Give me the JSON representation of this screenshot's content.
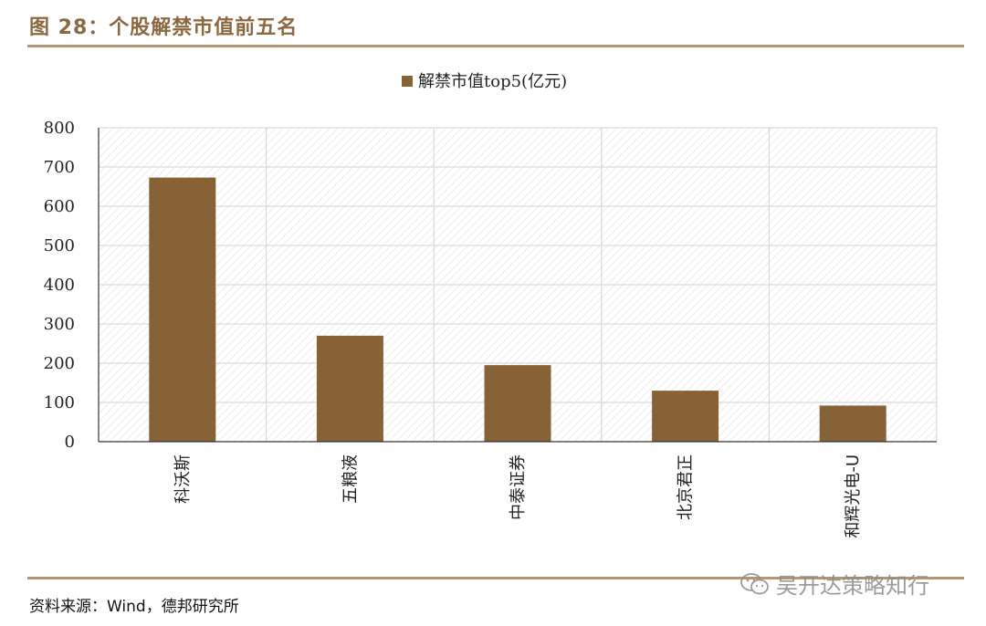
{
  "header": {
    "title": "图 28：个股解禁市值前五名"
  },
  "footer": {
    "source": "资料来源：Wind，德邦研究所",
    "watermark": "吴开达策略知行"
  },
  "colors": {
    "bar": "#876236",
    "accent": "#8b6840",
    "rule": "#b59574",
    "grid": "#d9d9d9"
  },
  "chart_data": {
    "type": "bar",
    "categories": [
      "科沃斯",
      "五粮液",
      "中泰证券",
      "北京君正",
      "和辉光电-U"
    ],
    "series": [
      {
        "name": "解禁市值top5(亿元)",
        "values": [
          673,
          270,
          195,
          130,
          92
        ]
      }
    ],
    "ylim": [
      0,
      800
    ],
    "yticks": [
      0,
      100,
      200,
      300,
      400,
      500,
      600,
      700,
      800
    ],
    "grid": true,
    "legend": "top-center"
  }
}
